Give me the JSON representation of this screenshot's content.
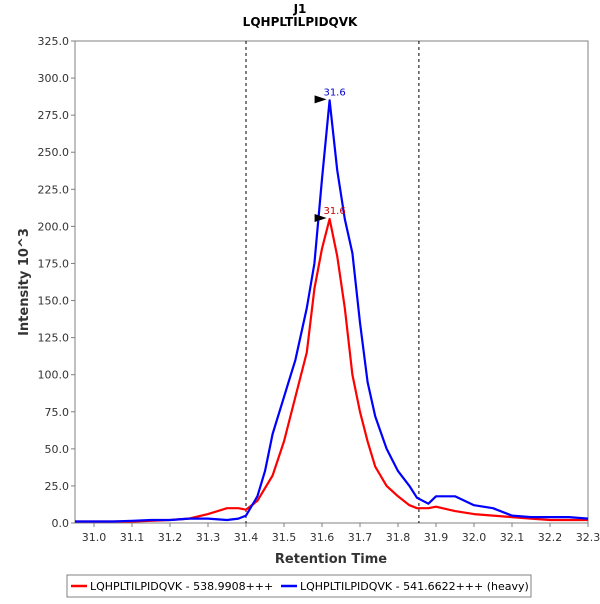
{
  "chart_data": {
    "type": "line",
    "title": "J1",
    "subtitle": "LQHPLTILPIDQVK",
    "xlabel": "Retention Time",
    "ylabel": "Intensity 10^3",
    "xlim": [
      30.95,
      32.3
    ],
    "ylim": [
      0,
      325
    ],
    "xticks": [
      "31.0",
      "31.1",
      "31.2",
      "31.3",
      "31.4",
      "31.5",
      "31.6",
      "31.7",
      "31.8",
      "31.9",
      "32.0",
      "32.1",
      "32.2",
      "32.3"
    ],
    "xtick_values": [
      31.0,
      31.1,
      31.2,
      31.3,
      31.4,
      31.5,
      31.6,
      31.7,
      31.8,
      31.9,
      32.0,
      32.1,
      32.2,
      32.3
    ],
    "yticks": [
      "0.0",
      "25.0",
      "50.0",
      "75.0",
      "100.0",
      "125.0",
      "150.0",
      "175.0",
      "200.0",
      "225.0",
      "250.0",
      "275.0",
      "300.0",
      "325.0"
    ],
    "ytick_values": [
      0,
      25,
      50,
      75,
      100,
      125,
      150,
      175,
      200,
      225,
      250,
      275,
      300,
      325
    ],
    "boundaries": [
      31.4,
      31.855
    ],
    "series": [
      {
        "name": "LQHPLTILPIDQVK - 538.9908+++",
        "color": "#ff0000",
        "x": [
          30.95,
          31.0,
          31.05,
          31.1,
          31.15,
          31.2,
          31.25,
          31.3,
          31.35,
          31.38,
          31.4,
          31.43,
          31.47,
          31.5,
          31.53,
          31.56,
          31.58,
          31.6,
          31.62,
          31.64,
          31.66,
          31.68,
          31.7,
          31.72,
          31.74,
          31.77,
          31.8,
          31.83,
          31.85,
          31.88,
          31.9,
          31.95,
          32.0,
          32.05,
          32.1,
          32.15,
          32.2,
          32.25,
          32.3
        ],
        "y": [
          1,
          1,
          1,
          1,
          1.5,
          2,
          3,
          6,
          10,
          10,
          9,
          15,
          32,
          55,
          85,
          115,
          158,
          185,
          205,
          180,
          145,
          100,
          75,
          55,
          38,
          25,
          18,
          12,
          10,
          10,
          11,
          8,
          6,
          5,
          4,
          3,
          2,
          2,
          2
        ]
      },
      {
        "name": "LQHPLTILPIDQVK - 541.6622+++ (heavy)",
        "color": "#0000ff",
        "x": [
          30.95,
          31.0,
          31.05,
          31.1,
          31.15,
          31.2,
          31.25,
          31.3,
          31.35,
          31.38,
          31.4,
          31.43,
          31.45,
          31.47,
          31.5,
          31.53,
          31.56,
          31.58,
          31.6,
          31.62,
          31.64,
          31.66,
          31.68,
          31.7,
          31.72,
          31.74,
          31.77,
          31.8,
          31.83,
          31.85,
          31.88,
          31.9,
          31.95,
          32.0,
          32.05,
          32.1,
          32.15,
          32.2,
          32.25,
          32.3
        ],
        "y": [
          1,
          1,
          1,
          1.5,
          2,
          2,
          3,
          3,
          2,
          3,
          5,
          18,
          35,
          60,
          85,
          110,
          145,
          175,
          232,
          285,
          238,
          205,
          182,
          135,
          95,
          72,
          50,
          35,
          25,
          17,
          13,
          18,
          18,
          12,
          10,
          5,
          4,
          4,
          4,
          3
        ]
      }
    ],
    "peaks": [
      {
        "series": 1,
        "x": 31.6,
        "label": "31.6",
        "color": "#0000cc"
      },
      {
        "series": 0,
        "x": 31.6,
        "label": "31.6",
        "color": "#cc0000"
      }
    ]
  }
}
